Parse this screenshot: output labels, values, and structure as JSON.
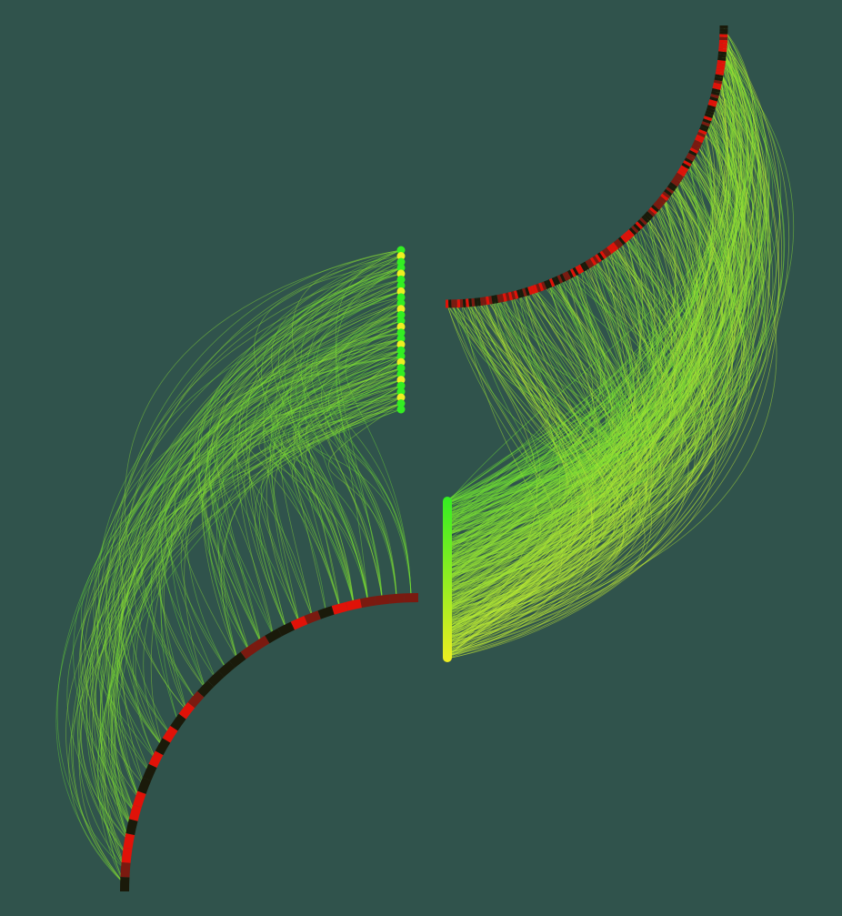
{
  "colors": {
    "background": "#30534c",
    "segment_dark": "#1a1a0a",
    "segment_red": "#e01208",
    "segment_maroon": "#7a1a10",
    "node_green": "#33ee22",
    "node_yellow": "#eeee22",
    "link_green": "#66dd33",
    "link_yellow": "#ccee33"
  },
  "panels": [
    {
      "id": "left-panel",
      "arc_segments": 32,
      "node_count": 28,
      "link_count": 180
    },
    {
      "id": "right-panel",
      "arc_segments": 150,
      "node_count": 60,
      "link_count": 420
    }
  ]
}
